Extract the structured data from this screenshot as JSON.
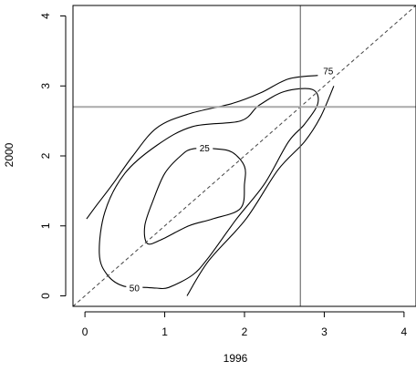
{
  "chart_data": {
    "type": "contour",
    "title": "",
    "xlabel": "1996",
    "ylabel": "2000",
    "xlim": [
      -0.15,
      4.15
    ],
    "ylim": [
      -0.15,
      4.15
    ],
    "x_ticks": [
      "0",
      "1",
      "2",
      "3",
      "4"
    ],
    "y_ticks": [
      "0",
      "1",
      "2",
      "3",
      "4"
    ],
    "grid": false,
    "reference_lines": {
      "diagonal": {
        "slope": 1,
        "intercept": 0,
        "style": "dashed"
      },
      "vertical_x": 2.7,
      "horizontal_y": 2.7
    },
    "contours": [
      {
        "label": "25",
        "label_at": [
          1.5,
          2.1
        ],
        "points": [
          [
            1.35,
            2.1
          ],
          [
            1.2,
            2.0
          ],
          [
            1.0,
            1.75
          ],
          [
            0.85,
            1.35
          ],
          [
            0.75,
            1.0
          ],
          [
            0.78,
            0.75
          ],
          [
            0.95,
            0.8
          ],
          [
            1.3,
            1.0
          ],
          [
            1.6,
            1.1
          ],
          [
            1.95,
            1.25
          ],
          [
            2.0,
            1.6
          ],
          [
            2.0,
            1.85
          ],
          [
            1.85,
            2.05
          ],
          [
            1.65,
            2.1
          ]
        ],
        "closed": true
      },
      {
        "label": "75",
        "label_at": [
          3.05,
          3.2
        ],
        "points": [
          [
            2.92,
            3.15
          ],
          [
            2.55,
            3.1
          ],
          [
            2.2,
            2.9
          ],
          [
            1.85,
            2.75
          ],
          [
            1.3,
            2.6
          ],
          [
            0.9,
            2.4
          ],
          [
            0.6,
            2.0
          ],
          [
            0.35,
            1.6
          ],
          [
            0.15,
            1.3
          ],
          [
            0.02,
            1.1
          ]
        ],
        "closed": false
      },
      {
        "label": "",
        "points": [
          [
            3.12,
            3.0
          ],
          [
            2.95,
            2.55
          ],
          [
            2.75,
            2.2
          ],
          [
            2.42,
            1.8
          ],
          [
            2.02,
            1.1
          ],
          [
            1.55,
            0.5
          ],
          [
            1.28,
            0.0
          ]
        ],
        "closed": false
      },
      {
        "label": "50",
        "label_at": [
          0.62,
          0.1
        ],
        "points": [
          [
            0.78,
            0.12
          ],
          [
            0.48,
            0.14
          ],
          [
            0.28,
            0.3
          ],
          [
            0.18,
            0.6
          ],
          [
            0.25,
            1.2
          ],
          [
            0.5,
            1.75
          ],
          [
            0.9,
            2.15
          ],
          [
            1.35,
            2.42
          ],
          [
            1.95,
            2.5
          ],
          [
            2.18,
            2.72
          ],
          [
            2.5,
            2.92
          ],
          [
            2.85,
            2.95
          ],
          [
            2.92,
            2.75
          ],
          [
            2.75,
            2.45
          ],
          [
            2.55,
            2.2
          ],
          [
            2.25,
            1.6
          ],
          [
            1.9,
            1.1
          ],
          [
            1.55,
            0.55
          ],
          [
            1.35,
            0.3
          ],
          [
            1.05,
            0.12
          ],
          [
            0.9,
            0.11
          ]
        ],
        "closed": true
      }
    ]
  }
}
